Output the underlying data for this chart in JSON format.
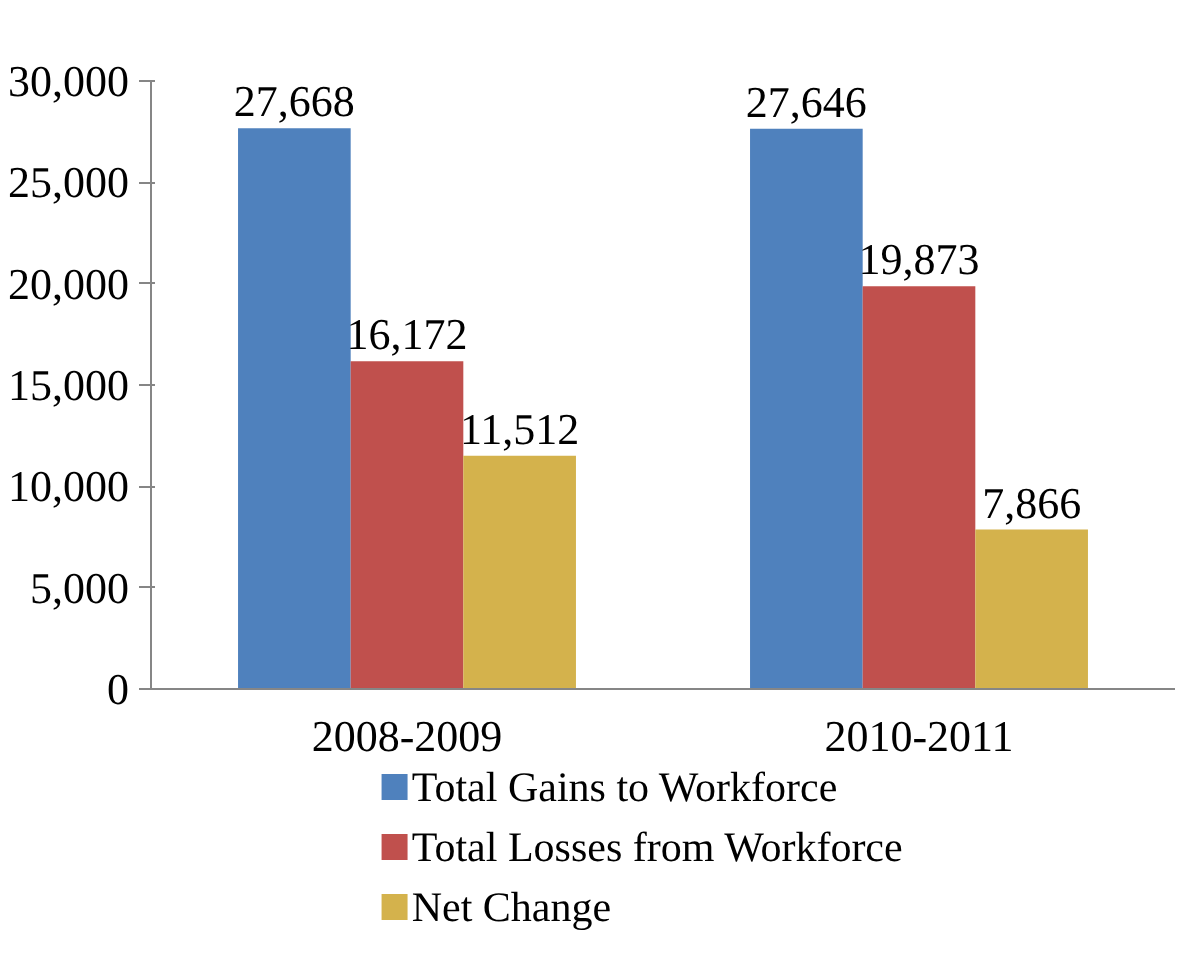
{
  "chart_data": {
    "type": "bar",
    "categories": [
      "2008-2009",
      "2010-2011"
    ],
    "series": [
      {
        "name": "Total Gains to Workforce",
        "color": "#4f81bd",
        "values": [
          27668,
          27646
        ],
        "value_labels": [
          "27,668",
          "27,646"
        ]
      },
      {
        "name": "Total Losses from Workforce",
        "color": "#c0504d",
        "values": [
          16172,
          19873
        ],
        "value_labels": [
          "16,172",
          "19,873"
        ]
      },
      {
        "name": "Net Change",
        "color": "#d4b24c",
        "values": [
          11512,
          7866
        ],
        "value_labels": [
          "11,512",
          "7,866"
        ]
      }
    ],
    "ylim": [
      0,
      30000
    ],
    "yticks": [
      {
        "value": 0,
        "label": "0"
      },
      {
        "value": 5000,
        "label": "5,000"
      },
      {
        "value": 10000,
        "label": "10,000"
      },
      {
        "value": 15000,
        "label": "15,000"
      },
      {
        "value": 20000,
        "label": "20,000"
      },
      {
        "value": 25000,
        "label": "25,000"
      },
      {
        "value": 30000,
        "label": "30,000"
      }
    ],
    "grid": false,
    "legend": "bottom"
  }
}
